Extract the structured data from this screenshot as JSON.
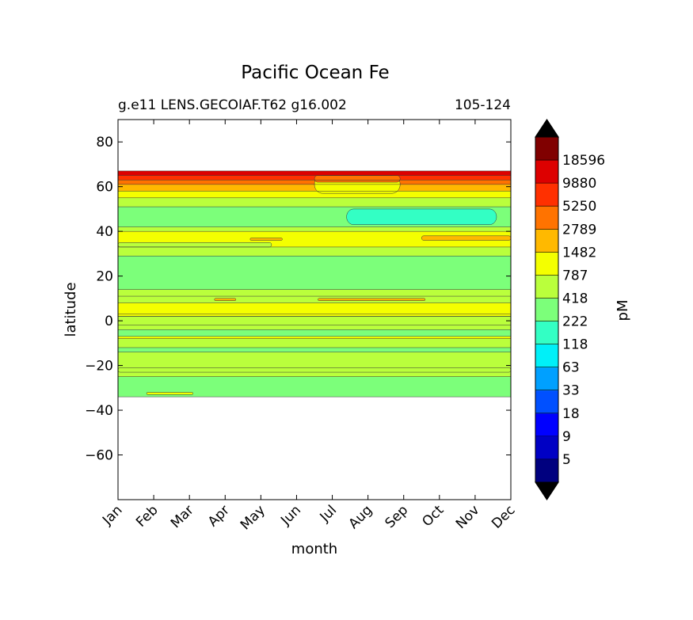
{
  "chart_data": {
    "type": "heatmap",
    "title": "Pacific Ocean Fe",
    "subtitle_left": "g.e11 LENS.GECOIAF.T62 g16.002",
    "subtitle_right": "105-124",
    "xlabel": "month",
    "ylabel": "latitude",
    "x_categories": [
      "Jan",
      "Feb",
      "Mar",
      "Apr",
      "May",
      "Jun",
      "Jul",
      "Aug",
      "Sep",
      "Oct",
      "Nov",
      "Dec"
    ],
    "ylim": [
      -80,
      90
    ],
    "y_ticks": [
      80,
      60,
      40,
      20,
      0,
      -20,
      -40,
      -60
    ],
    "y_tick_labels": [
      "80",
      "60",
      "40",
      "20",
      "0",
      "−20",
      "−40",
      "−60"
    ],
    "data_lat_range": [
      -34,
      67
    ],
    "colorbar": {
      "label": "pM",
      "levels": [
        5,
        9,
        18,
        33,
        63,
        118,
        222,
        418,
        787,
        1482,
        2789,
        5250,
        9880,
        18596
      ],
      "level_labels": [
        "5",
        "9",
        "18",
        "33",
        "63",
        "118",
        "222",
        "418",
        "787",
        "1482",
        "2789",
        "5250",
        "9880",
        "18596"
      ],
      "colors": [
        "#00007f",
        "#0000c4",
        "#0000ff",
        "#0050ff",
        "#00a0ff",
        "#00f0f8",
        "#33ffc4",
        "#7cff7a",
        "#baff3c",
        "#f4ff00",
        "#ffb900",
        "#ff7300",
        "#ff3000",
        "#dd0000",
        "#800000"
      ],
      "extend": "both",
      "under_color": "#000000",
      "over_color": "#000000"
    },
    "bands": [
      {
        "lat_min": -34,
        "lat_max": -25,
        "level": 7
      },
      {
        "lat_min": -25,
        "lat_max": -14,
        "level": 8
      },
      {
        "lat_min": -14,
        "lat_max": -12,
        "level": 7
      },
      {
        "lat_min": -12,
        "lat_max": -8,
        "level": 8
      },
      {
        "lat_min": -8,
        "lat_max": -7,
        "level": 9
      },
      {
        "lat_min": -7,
        "lat_max": -4,
        "level": 7
      },
      {
        "lat_min": -4,
        "lat_max": -2,
        "level": 8
      },
      {
        "lat_min": -2,
        "lat_max": 2,
        "level": 8
      },
      {
        "lat_min": 2,
        "lat_max": 8,
        "level": 9
      },
      {
        "lat_min": 8,
        "lat_max": 11,
        "level": 8
      },
      {
        "lat_min": 11,
        "lat_max": 14,
        "level": 8
      },
      {
        "lat_min": 14,
        "lat_max": 29,
        "level": 7
      },
      {
        "lat_min": 29,
        "lat_max": 33,
        "level": 8
      },
      {
        "lat_min": 33,
        "lat_max": 40,
        "level": 9
      },
      {
        "lat_min": 40,
        "lat_max": 42,
        "level": 8
      },
      {
        "lat_min": 42,
        "lat_max": 51,
        "level": 7
      },
      {
        "lat_min": 51,
        "lat_max": 55,
        "level": 8
      },
      {
        "lat_min": 55,
        "lat_max": 58,
        "level": 9
      },
      {
        "lat_min": 58,
        "lat_max": 61,
        "level": 10
      },
      {
        "lat_min": 61,
        "lat_max": 63,
        "level": 11
      },
      {
        "lat_min": 63,
        "lat_max": 65,
        "level": 12
      },
      {
        "lat_min": 65,
        "lat_max": 67,
        "level": 13
      }
    ],
    "patches": [
      {
        "month_start": 6.4,
        "month_end": 10.6,
        "lat_min": 43,
        "lat_max": 50,
        "level": 6
      },
      {
        "month_start": 0,
        "month_end": 4.3,
        "lat_min": 33,
        "lat_max": 35,
        "level": 8
      },
      {
        "month_start": 8.5,
        "month_end": 11,
        "lat_min": 36,
        "lat_max": 38,
        "level": 10
      },
      {
        "month_start": 3.7,
        "month_end": 4.6,
        "lat_min": 36,
        "lat_max": 37,
        "level": 10
      },
      {
        "month_start": 5.6,
        "month_end": 8.6,
        "lat_min": 9,
        "lat_max": 10,
        "level": 10
      },
      {
        "month_start": 2.7,
        "month_end": 3.3,
        "lat_min": 9,
        "lat_max": 10,
        "level": 10
      },
      {
        "month_start": 0,
        "month_end": 11,
        "lat_min": 2,
        "lat_max": 3,
        "level": 9
      },
      {
        "month_start": 0,
        "month_end": 11,
        "lat_min": -23,
        "lat_max": -21,
        "level": 8
      },
      {
        "month_start": 0.8,
        "month_end": 2.1,
        "lat_min": -33,
        "lat_max": -32,
        "level": 9
      },
      {
        "month_start": 5.5,
        "month_end": 7.9,
        "lat_min": 57,
        "lat_max": 65,
        "level": 9
      },
      {
        "month_start": 5.5,
        "month_end": 7.9,
        "lat_min": 62,
        "lat_max": 65,
        "level": 11
      }
    ]
  }
}
